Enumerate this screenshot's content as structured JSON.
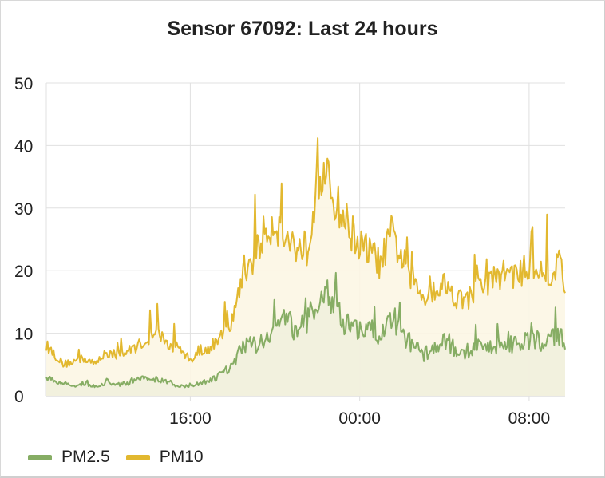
{
  "chart_data": {
    "type": "area",
    "title": "Sensor 67092: Last 24 hours",
    "xlabel": "",
    "ylabel": "",
    "ylim": [
      0,
      50
    ],
    "yticks": [
      "0",
      "10",
      "20",
      "30",
      "40",
      "50"
    ],
    "x_tick_labels": [
      "16:00",
      "00:00",
      "08:00"
    ],
    "x_ticks_hours": [
      16,
      24,
      32
    ],
    "x_range_hours": [
      9.2,
      33.7
    ],
    "x_unit": "hours (time of day, 24 = 00:00 next day)",
    "grid": true,
    "legend_position": "bottom-left",
    "series": [
      {
        "name": "PM2.5",
        "color": "#86ad64",
        "fill": "#f1efdd",
        "x": [
          9.2,
          9.5,
          10,
          10.5,
          11,
          11.5,
          12,
          12.5,
          13,
          13.5,
          14,
          14.5,
          15,
          15.5,
          16,
          16.5,
          17,
          17.5,
          18,
          18.5,
          19,
          19.5,
          20,
          20.5,
          21,
          21.5,
          22,
          22.5,
          23,
          23.5,
          24,
          24.5,
          25,
          25.5,
          26,
          26.5,
          27,
          27.5,
          28,
          28.5,
          29,
          29.5,
          30,
          30.5,
          31,
          31.5,
          32,
          32.5,
          33,
          33.5,
          33.7
        ],
        "values": [
          3,
          2.5,
          2,
          1.5,
          2,
          1.5,
          2,
          1.8,
          2,
          2.5,
          3,
          2.5,
          2.2,
          1.5,
          1.5,
          2,
          2.5,
          3.5,
          5,
          8,
          8,
          9.5,
          11,
          12,
          10.5,
          11.5,
          15,
          16,
          13,
          11,
          10,
          10.5,
          9.5,
          13,
          10,
          8,
          6.5,
          7.5,
          8.5,
          7.5,
          6.5,
          7.5,
          7.5,
          8,
          8,
          8.5,
          9,
          8.5,
          9.5,
          10,
          7.5
        ]
      },
      {
        "name": "PM10",
        "color": "#e2b82f",
        "fill": "#fcf6e4",
        "x": [
          9.2,
          9.5,
          10,
          10.5,
          11,
          11.5,
          12,
          12.5,
          13,
          13.5,
          14,
          14.5,
          15,
          15.5,
          16,
          16.5,
          17,
          17.5,
          18,
          18.5,
          19,
          19.5,
          20,
          20.5,
          21,
          21.5,
          22,
          22.5,
          23,
          23.5,
          24,
          24.5,
          25,
          25.5,
          26,
          26.5,
          27,
          27.5,
          28,
          28.5,
          29,
          29.5,
          30,
          30.5,
          31,
          31.5,
          32,
          32.5,
          33,
          33.5,
          33.7
        ],
        "values": [
          8,
          7,
          5,
          5.5,
          6,
          5,
          7,
          6.5,
          7,
          8,
          9,
          10,
          8,
          7,
          6,
          6.5,
          8,
          9.5,
          12,
          20,
          22,
          26,
          28,
          25,
          24,
          23,
          35,
          34,
          30,
          27,
          24,
          23,
          21,
          26,
          22,
          18,
          16,
          17,
          18,
          16,
          15,
          17,
          18,
          19,
          20,
          19,
          21,
          20,
          19,
          22,
          16
        ]
      }
    ]
  }
}
